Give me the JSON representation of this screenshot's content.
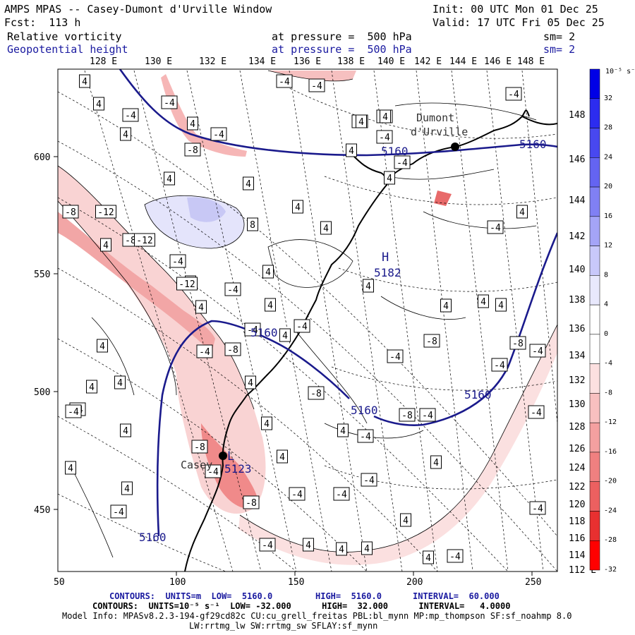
{
  "header": {
    "title": "AMPS MPAS -- Casey-Dumont d'Urville Window",
    "init": "Init: 00 UTC Mon 01 Dec 25",
    "forecast": "Fcst:  113 h",
    "valid": "Valid: 17 UTC Fri 05 Dec 25",
    "field1_name": "Relative vorticity",
    "field1_level": "at pressure =  500 hPa",
    "field1_smooth": "sm= 2",
    "field2_name": "Geopotential height",
    "field2_level": "at pressure =  500 hPa",
    "field2_smooth": "sm= 2"
  },
  "map": {
    "top_lon_labels": [
      "128 E",
      "130 E",
      "132 E",
      "134 E",
      "136 E",
      "138 E",
      "140 E",
      "142 E",
      "144 E",
      "146 E",
      "148 E"
    ],
    "right_lon_labels": [
      "148 E",
      "146 E",
      "144 E",
      "142 E",
      "140 E",
      "138 E",
      "136 E",
      "134 E",
      "132 E",
      "130 E",
      "128 E",
      "126 E",
      "124 E",
      "122 E",
      "120 E",
      "118 E",
      "116 E",
      "114 E",
      "112 E"
    ],
    "x_ticks": [
      "50",
      "100",
      "150",
      "200",
      "250"
    ],
    "y_ticks": [
      "600",
      "550",
      "500",
      "450"
    ],
    "places": {
      "dumont": "Dumont",
      "durville": "d'Urville",
      "casey": "Casey"
    },
    "highs": [
      {
        "symbol": "H",
        "value": "5182"
      },
      {
        "symbol": "L",
        "value": "5123"
      }
    ],
    "height_labels": [
      "5160",
      "5160",
      "5160",
      "5160",
      "5160",
      "5160"
    ],
    "vorticity_labels": [
      "4",
      "-4",
      "4",
      "4",
      "-4",
      "-8",
      "-4",
      "4",
      "4",
      "-8",
      "-12",
      "-8",
      "4",
      "8",
      "-4",
      "-4",
      "-8",
      "-8",
      "-12",
      "-4",
      "4",
      "-12",
      "4",
      "4",
      "-4",
      "-8",
      "-4",
      "4",
      "-4",
      "-4",
      "4",
      "-4",
      "-8",
      "-8",
      "-4",
      "4",
      "4",
      "-4",
      "-8",
      "-4",
      "-4",
      "4",
      "4",
      "-4",
      "4",
      "-4",
      "-8",
      "-4",
      "4",
      "4",
      "4",
      "4",
      "4",
      "-4",
      "-4",
      "-4",
      "4",
      "4",
      "-8",
      "-8",
      "-4",
      "-4",
      "-4",
      "4",
      "-4",
      "4",
      "4",
      "-4",
      "-4",
      "4",
      "4",
      "4",
      "4",
      "4",
      "4",
      "4",
      "4",
      "4",
      "4",
      "4",
      "4",
      "4",
      "-4",
      "-4",
      "-4"
    ]
  },
  "colorbar": {
    "unit_label": "10⁻⁵ s⁻¹",
    "tick_labels": [
      "32",
      "28",
      "24",
      "20",
      "16",
      "12",
      "8",
      "4",
      "0",
      "-4",
      "-8",
      "-12",
      "-16",
      "-20",
      "-24",
      "-28",
      "-32"
    ],
    "colors": [
      "#0000e6",
      "#2c2cef",
      "#4848f0",
      "#6464f2",
      "#8080f4",
      "#a4a4f7",
      "#c8c8fa",
      "#e8e8fc",
      "#ffffff",
      "#ffffff",
      "#fce0e0",
      "#f8c0c0",
      "#f4a0a0",
      "#f08080",
      "#ec6060",
      "#e83030",
      "#ff0000"
    ]
  },
  "footer": {
    "line1_a": "CONTOURS:  UNITS=m  LOW=  5160.0",
    "line1_b": "HIGH=  5160.0",
    "line1_c": "INTERVAL=  60.000",
    "line2": "CONTOURS:  UNITS=10⁻⁵ s⁻¹  LOW= -32.000      HIGH=  32.000      INTERVAL=   4.0000",
    "line3": "Model Info: MPASv8.2.3-194-gf29cd82c CU:cu_grell_freitas PBL:bl_mynn MP:mp_thompson SF:sf_noahmp 8.0",
    "line4": "LW:rrtmg_lw SW:rrtmg_sw SFLAY:sf_mynn"
  }
}
